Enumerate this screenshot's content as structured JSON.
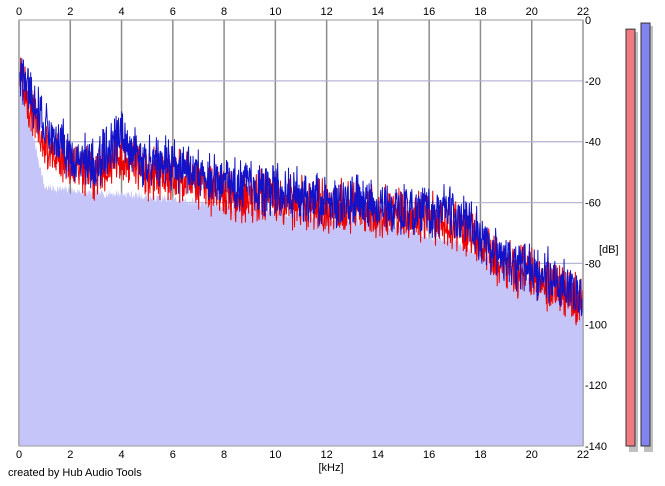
{
  "credit_text": "created by Hub Audio Tools",
  "colors": {
    "background": "#ffffff",
    "plot_fill": "#c5c5fa",
    "grid": "#b4b4b4",
    "series_left": "#ee0000",
    "series_right": "#1212c8",
    "meter_left": "#ef7a80",
    "meter_right": "#8484f0",
    "meter_shadow": "#c0c0c0"
  },
  "chart_data": {
    "type": "line",
    "title": "",
    "xlabel": "[kHz]",
    "ylabel": "[dB]",
    "xlim": [
      0,
      22
    ],
    "ylim": [
      -140,
      0
    ],
    "x_ticks": [
      0,
      2,
      4,
      6,
      8,
      10,
      12,
      14,
      16,
      18,
      20,
      22
    ],
    "y_ticks": [
      0,
      -20,
      -40,
      -60,
      -80,
      -100,
      -120,
      -140
    ],
    "x_tick_labels_top": [
      "0",
      "2",
      "4",
      "6",
      "8",
      "10",
      "12",
      "14",
      "16",
      "18",
      "20",
      "22"
    ],
    "x_tick_labels_bottom": [
      "0",
      "2",
      "4",
      "6",
      "8",
      "10",
      "12",
      "14",
      "16",
      "18",
      "20",
      "22"
    ],
    "y_tick_labels": [
      "0",
      "-20",
      "-40",
      "-60",
      "-80",
      "-100",
      "-120",
      "-140"
    ],
    "grid": true,
    "legend": "none",
    "envelope_floor_db": [
      -17,
      -55,
      -56,
      -57,
      -57,
      -58,
      -59,
      -60,
      -61,
      -62,
      -63,
      -64,
      -65,
      -66,
      -67,
      -68,
      -71,
      -73,
      -77,
      -81,
      -86,
      -89,
      -92
    ],
    "series": [
      {
        "values_db": [
          -17,
          -42,
          -47,
          -50,
          -44,
          -51,
          -51,
          -53,
          -57,
          -58,
          -58,
          -60,
          -62,
          -61,
          -64,
          -64,
          -65,
          -67,
          -73,
          -80,
          -84,
          -88,
          -93
        ]
      },
      {
        "values_db": [
          -17,
          -35,
          -44,
          -47,
          -38,
          -47,
          -47,
          -50,
          -54,
          -55,
          -56,
          -57,
          -60,
          -58,
          -62,
          -62,
          -63,
          -63,
          -71,
          -78,
          -83,
          -85,
          -91
        ]
      }
    ],
    "level_meters": [
      {
        "value_db": -3
      },
      {
        "value_db": -1
      }
    ]
  }
}
